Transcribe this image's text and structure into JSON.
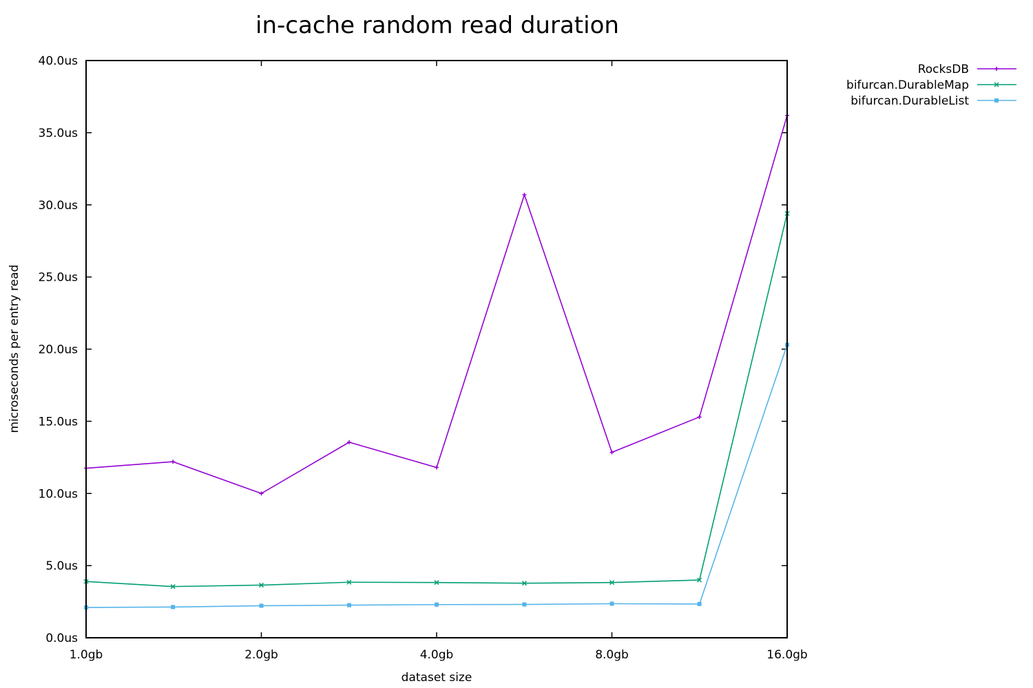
{
  "chart_data": {
    "type": "line",
    "title": "in-cache random read duration",
    "xlabel": "dataset size",
    "ylabel": "microseconds per entry read",
    "x_scale": "log2",
    "x_ticks": [
      "1.0gb",
      "2.0gb",
      "4.0gb",
      "8.0gb",
      "16.0gb"
    ],
    "y_ticks": [
      "0.0us",
      "5.0us",
      "10.0us",
      "15.0us",
      "20.0us",
      "25.0us",
      "30.0us",
      "35.0us",
      "40.0us"
    ],
    "ylim": [
      0,
      40
    ],
    "xlim_gb": [
      1,
      16
    ],
    "legend_position": "top-right outside",
    "grid": false,
    "x_gb": [
      1,
      1.41,
      2,
      2.83,
      4,
      5.66,
      8,
      11.31,
      16
    ],
    "series": [
      {
        "name": "RocksDB",
        "color": "#9400d3",
        "marker": "plus",
        "values": [
          11.75,
          12.2,
          10.0,
          13.55,
          11.8,
          30.7,
          12.85,
          15.3,
          36.2
        ]
      },
      {
        "name": "bifurcan.DurableMap",
        "color": "#009e73",
        "marker": "cross",
        "values": [
          3.9,
          3.55,
          3.65,
          3.85,
          3.83,
          3.78,
          3.83,
          4.0,
          29.4
        ]
      },
      {
        "name": "bifurcan.DurableList",
        "color": "#56b4e9",
        "marker": "square",
        "values": [
          2.1,
          2.13,
          2.22,
          2.26,
          2.3,
          2.31,
          2.36,
          2.34,
          20.3
        ]
      }
    ]
  }
}
